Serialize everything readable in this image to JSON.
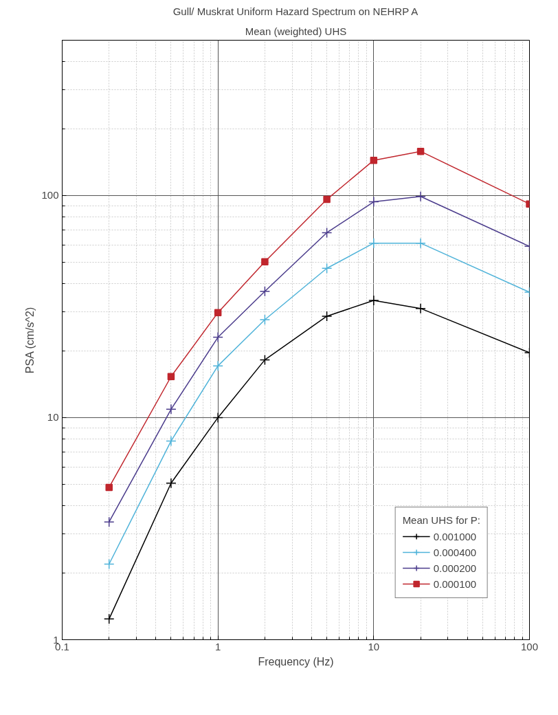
{
  "chart_data": {
    "type": "line",
    "title": "Gull/ Muskrat Uniform Hazard Spectrum on NEHRP A",
    "subtitle": "Mean (weighted) UHS",
    "xlabel": "Frequency (Hz)",
    "ylabel": "PSA (cm/s^2)",
    "log": "xy",
    "grid": true,
    "legend": "bottom right",
    "legend_title": "Mean UHS for P:",
    "line_style": "solid",
    "xlim": [
      0.1,
      100
    ],
    "ylim": [
      1,
      500
    ],
    "xticks": [
      0.1,
      1,
      10,
      100
    ],
    "yticks": [
      1,
      10,
      100
    ],
    "x": [
      0.2,
      0.5,
      1,
      2,
      5,
      10,
      20,
      100
    ],
    "series": [
      {
        "name": "0.001000",
        "color": "#000000",
        "marker": "cross",
        "values": [
          1.24,
          5.07,
          10,
          18.2,
          28.6,
          33.7,
          31,
          19.6
        ]
      },
      {
        "name": "0.000400",
        "color": "#4fb3d9",
        "marker": "cross",
        "values": [
          2.19,
          7.85,
          17.1,
          27.6,
          47,
          61,
          61,
          36.7
        ]
      },
      {
        "name": "0.000200",
        "color": "#4b3c8c",
        "marker": "cross",
        "values": [
          3.39,
          10.9,
          23,
          37,
          68,
          93.6,
          99,
          59
        ]
      },
      {
        "name": "0.000100",
        "color": "#c0262d",
        "marker": "square",
        "values": [
          4.85,
          15.3,
          29.7,
          50.3,
          96,
          144,
          158,
          91.6
        ]
      }
    ]
  }
}
